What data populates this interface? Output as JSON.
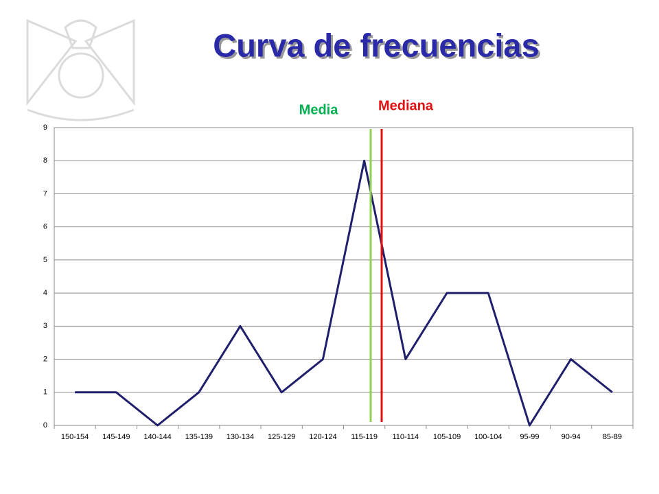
{
  "chart_data": {
    "type": "line",
    "title": "Curva de frecuencias",
    "categories": [
      "150-154",
      "145-149",
      "140-144",
      "135-139",
      "130-134",
      "125-129",
      "120-124",
      "115-119",
      "110-114",
      "105-109",
      "100-104",
      "95-99",
      "90-94",
      "85-89"
    ],
    "values": [
      1,
      1,
      0,
      1,
      3,
      1,
      2,
      8,
      2,
      4,
      4,
      0,
      2,
      1
    ],
    "color": "#1f1f6b",
    "ylim": [
      0,
      9
    ],
    "yticks": [
      0,
      1,
      2,
      3,
      4,
      5,
      6,
      7,
      8,
      9
    ],
    "grid": true,
    "annotations": [
      {
        "text": "Media",
        "color": "#00b050",
        "line_color": "#92d050"
      },
      {
        "text": "Mediana",
        "color": "#e01010",
        "line_color": "#e01010"
      }
    ]
  }
}
